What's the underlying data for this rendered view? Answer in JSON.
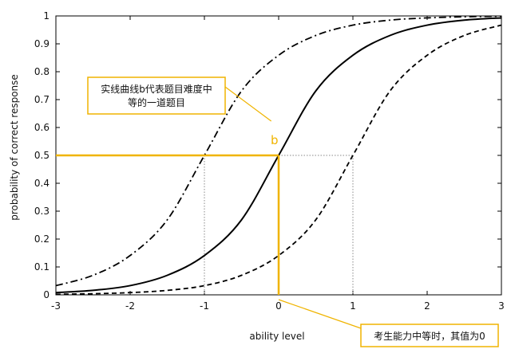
{
  "chart_data": {
    "type": "line",
    "xlabel": "ability level",
    "ylabel": "probability of correct response",
    "xlim": [
      -3,
      3
    ],
    "ylim": [
      0,
      1
    ],
    "xticks": [
      -3,
      -2,
      -1,
      0,
      1,
      2,
      3
    ],
    "yticks": [
      0,
      0.1,
      0.2,
      0.3,
      0.4,
      0.5,
      0.6,
      0.7,
      0.8,
      0.9,
      1
    ],
    "xtick_labels": [
      "-3",
      "-2",
      "-1",
      "0",
      "1",
      "2",
      "3"
    ],
    "ytick_labels": [
      "0",
      "0.1",
      "0.2",
      "0.3",
      "0.4",
      "0.5",
      "0.6",
      "0.7",
      "0.8",
      "0.9",
      "1"
    ],
    "x": [
      -3,
      -2.5,
      -2,
      -1.5,
      -1,
      -0.5,
      0,
      0.5,
      1,
      1.5,
      2,
      2.5,
      3
    ],
    "series": [
      {
        "style": "dash-dot",
        "values": [
          0.033,
          0.07,
          0.141,
          0.269,
          0.5,
          0.731,
          0.859,
          0.93,
          0.967,
          0.985,
          0.993,
          0.997,
          0.999
        ]
      },
      {
        "style": "solid",
        "values": [
          0.008,
          0.016,
          0.033,
          0.07,
          0.141,
          0.269,
          0.5,
          0.731,
          0.859,
          0.93,
          0.967,
          0.985,
          0.993
        ]
      },
      {
        "style": "dashed",
        "values": [
          0.002,
          0.004,
          0.008,
          0.016,
          0.033,
          0.07,
          0.141,
          0.269,
          0.5,
          0.731,
          0.859,
          0.93,
          0.967
        ]
      }
    ],
    "reference_lines": [
      {
        "orientation": "vertical",
        "x": -1,
        "y": 0.5,
        "style": "dotted"
      },
      {
        "orientation": "vertical",
        "x": 1,
        "y": 0.5,
        "style": "dotted"
      },
      {
        "orientation": "horizontal",
        "y": 0.5,
        "x_from": 0,
        "x_to": 1,
        "style": "dotted"
      }
    ],
    "highlight": {
      "x": 0,
      "y": 0.5,
      "label": "b",
      "color": "#f0b400"
    },
    "annotations": [
      {
        "lines": [
          "实线曲线b代表题目难度中",
          "等的一道题目"
        ],
        "target_x": -0.1,
        "target_y": 0.64
      },
      {
        "lines": [
          "考生能力中等时，其值为0"
        ],
        "target_x": 0,
        "target_y": 0
      }
    ],
    "grid": false,
    "legend": "none"
  },
  "colors": {
    "axis": "#000000",
    "curve": "#000000",
    "highlight": "#f0b400",
    "dotted_guides": "#888888"
  }
}
